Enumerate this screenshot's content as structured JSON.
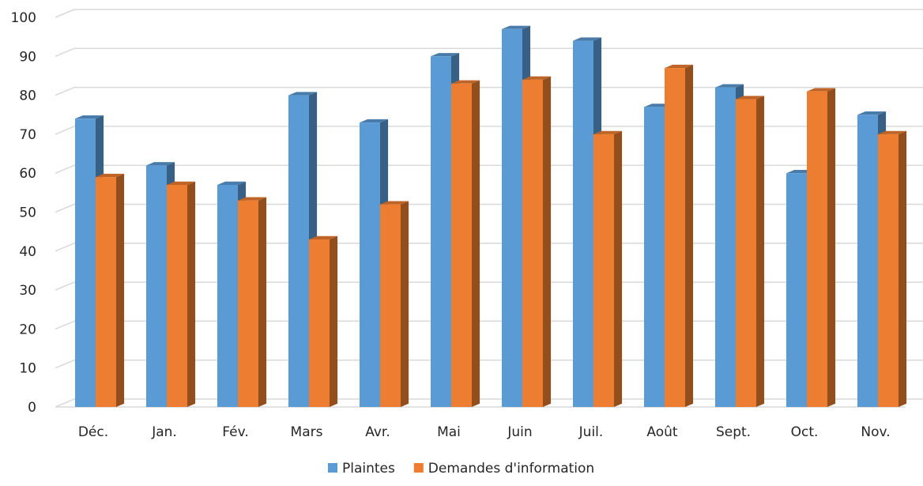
{
  "chart_data": {
    "type": "bar",
    "title": "",
    "xlabel": "",
    "ylabel": "",
    "ylim": [
      0,
      100
    ],
    "y_ticks": [
      0,
      10,
      20,
      30,
      40,
      50,
      60,
      70,
      80,
      90,
      100
    ],
    "grid": true,
    "legend_position": "bottom",
    "categories": [
      "Déc.",
      "Jan.",
      "Fév.",
      "Mars",
      "Avr.",
      "Mai",
      "Juin",
      "Juil.",
      "Août",
      "Sept.",
      "Oct.",
      "Nov."
    ],
    "series": [
      {
        "name": "Plaintes",
        "color": "#5B9BD5",
        "values": [
          74,
          62,
          57,
          80,
          73,
          90,
          97,
          94,
          77,
          82,
          60,
          75
        ]
      },
      {
        "name": "Demandes d'information",
        "color": "#ED7D31",
        "values": [
          59,
          57,
          53,
          43,
          52,
          83,
          84,
          70,
          87,
          79,
          81,
          70
        ]
      }
    ]
  }
}
